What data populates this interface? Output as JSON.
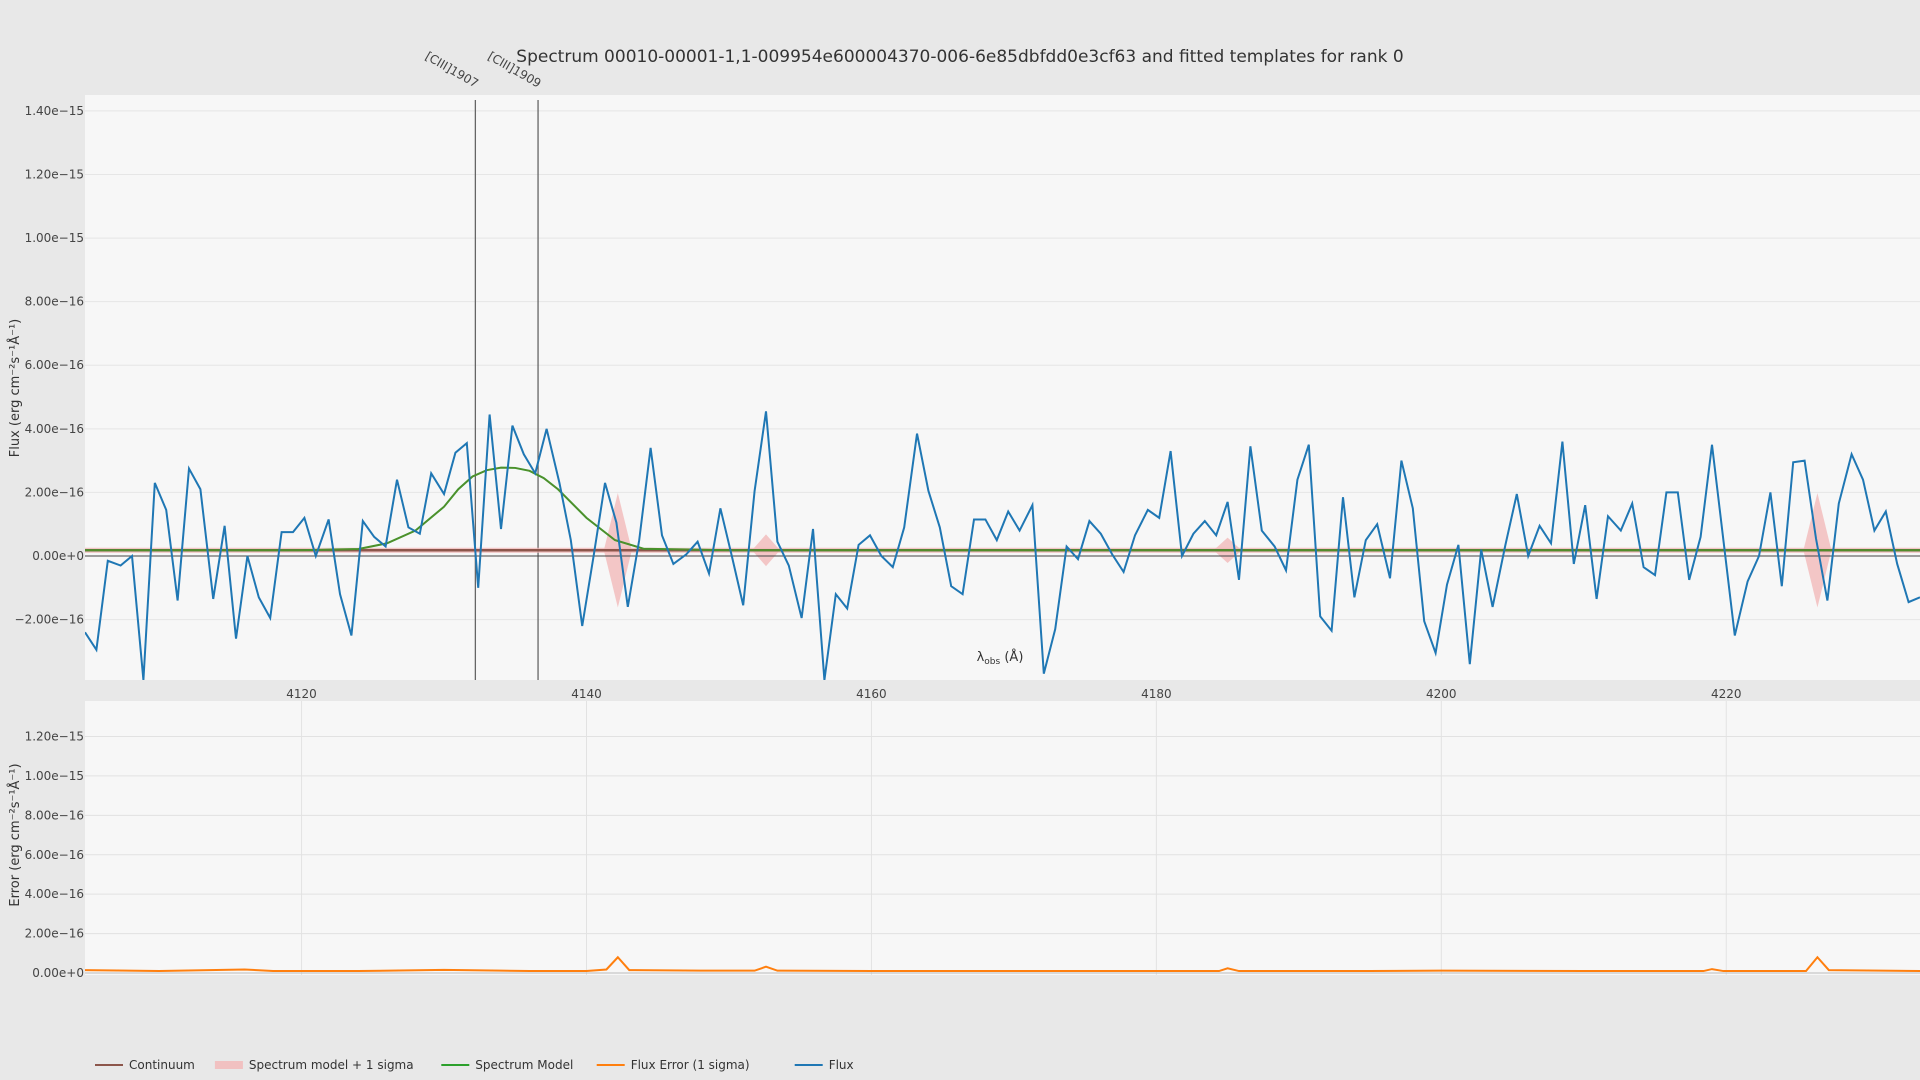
{
  "chart_data": [
    {
      "type": "line",
      "title": "Spectrum 00010-00001-1,1-009954e600004370-006-6e85dbfdd0e3cf63 and fitted templates for rank 0",
      "xlabel_main": "λ",
      "xlabel_sub": "obs",
      "xlabel_unit": " (Å)",
      "ylabel": "Flux (erg cm⁻²s⁻¹Å⁻¹)",
      "xlim": [
        4104.8,
        4233.6
      ],
      "ylim": [
        -3.9e-16,
        1.45e-15
      ],
      "x_ticks": [
        4120,
        4140,
        4160,
        4180,
        4200,
        4220
      ],
      "x_tick_labels": [
        "4120",
        "4140",
        "4160",
        "4180",
        "4200",
        "4220"
      ],
      "y_ticks": [
        -2e-16,
        0,
        2e-16,
        4e-16,
        6e-16,
        8e-16,
        1e-15,
        1.2e-15,
        1.4e-15
      ],
      "y_tick_labels": [
        "−2.00e−16",
        "0.00e+0",
        "2.00e−16",
        "4.00e−16",
        "6.00e−16",
        "8.00e−16",
        "1.00e−15",
        "1.20e−15",
        "1.40e−15"
      ],
      "line_markers": [
        {
          "label": "[CIII]1907",
          "x": 4132.2
        },
        {
          "label": "[CIII]1909",
          "x": 4136.6
        }
      ],
      "continuum": {
        "name": "Continuum",
        "value": 1.8e-17,
        "color": "#8c564b"
      },
      "zero_line": 0,
      "sigma_band": {
        "name": "Spectrum model + 1 sigma",
        "color": "#f2b6b6",
        "half_width": 8e-18,
        "spikes": [
          {
            "x": 4142.2,
            "width": 1.8e-16
          },
          {
            "x": 4152.6,
            "width": 5e-17
          },
          {
            "x": 4185.0,
            "width": 4e-17
          },
          {
            "x": 4226.4,
            "width": 1.8e-16
          }
        ]
      },
      "model": {
        "name": "Spectrum Model",
        "color": "#2ca02c",
        "x": [
          4104.8,
          4120,
          4124,
          4126,
          4128,
          4130,
          4131,
          4132,
          4133,
          4134,
          4135,
          4136,
          4137,
          4138,
          4140,
          4142,
          4144,
          4150,
          4233.6
        ],
        "y": [
          1.8e-17,
          1.8e-17,
          2.2e-17,
          4e-17,
          8e-17,
          1.55e-16,
          2.1e-16,
          2.5e-16,
          2.7e-16,
          2.78e-16,
          2.77e-16,
          2.68e-16,
          2.45e-16,
          2.1e-16,
          1.2e-16,
          5e-17,
          2.3e-17,
          1.8e-17,
          1.8e-17
        ]
      },
      "flux": {
        "name": "Flux",
        "color": "#1f77b4",
        "x": [
          4104.8,
          4105.6,
          4106.4,
          4107.3,
          4108.1,
          4108.9,
          4109.7,
          4110.5,
          4111.3,
          4112.1,
          4112.9,
          4113.8,
          4114.6,
          4115.4,
          4116.2,
          4117.0,
          4117.8,
          4118.6,
          4119.4,
          4120.2,
          4121.0,
          4121.9,
          4122.7,
          4123.5,
          4124.3,
          4125.1,
          4125.9,
          4126.7,
          4127.5,
          4128.3,
          4129.1,
          4130.0,
          4130.8,
          4131.6,
          4132.4,
          4133.2,
          4134.0,
          4134.8,
          4135.6,
          4136.4,
          4137.2,
          4138.1,
          4138.9,
          4139.7,
          4140.5,
          4141.3,
          4142.1,
          4142.9,
          4143.7,
          4144.5,
          4145.3,
          4146.1,
          4147.0,
          4147.8,
          4148.6,
          4149.4,
          4150.2,
          4151.0,
          4151.8,
          4152.6,
          4153.4,
          4154.2,
          4155.1,
          4155.9,
          4156.7,
          4157.5,
          4158.3,
          4159.1,
          4159.9,
          4160.7,
          4161.5,
          4162.3,
          4163.2,
          4164.0,
          4164.8,
          4165.6,
          4166.4,
          4167.2,
          4168.0,
          4168.8,
          4169.6,
          4170.4,
          4171.3,
          4172.1,
          4172.9,
          4173.7,
          4174.5,
          4175.3,
          4176.1,
          4176.9,
          4177.7,
          4178.5,
          4179.4,
          4180.2,
          4181.0,
          4181.8,
          4182.6,
          4183.4,
          4184.2,
          4185.0,
          4185.8,
          4186.6,
          4187.4,
          4188.3,
          4189.1,
          4189.9,
          4190.7,
          4191.5,
          4192.3,
          4193.1,
          4193.9,
          4194.7,
          4195.5,
          4196.4,
          4197.2,
          4198.0,
          4198.8,
          4199.6,
          4200.4,
          4201.2,
          4202.0,
          4202.8,
          4203.6,
          4204.5,
          4205.3,
          4206.1,
          4206.9,
          4207.7,
          4208.5,
          4209.3,
          4210.1,
          4210.9,
          4211.7,
          4212.6,
          4213.4,
          4214.2,
          4215.0,
          4215.8,
          4216.6,
          4217.4,
          4218.2,
          4219.0,
          4219.8,
          4220.6,
          4221.5,
          4222.3,
          4223.1,
          4223.9,
          4224.7,
          4225.5,
          4226.3,
          4227.1,
          4227.9,
          4228.8,
          4229.6,
          4230.4,
          4231.2,
          4232.0,
          4232.8,
          4233.6
        ],
        "y": [
          -2.4e-16,
          -2.95e-16,
          -1.5e-17,
          -3e-17,
          0,
          -3.9e-16,
          2.3e-16,
          1.45e-16,
          -1.4e-16,
          2.75e-16,
          2.1e-16,
          -1.35e-16,
          9.5e-17,
          -2.6e-16,
          0,
          -1.3e-16,
          -1.95e-16,
          7.5e-17,
          7.5e-17,
          1.2e-16,
          0,
          1.15e-16,
          -1.2e-16,
          -2.5e-16,
          1.1e-16,
          6e-17,
          3e-17,
          2.4e-16,
          9e-17,
          7e-17,
          2.6e-16,
          1.95e-16,
          3.25e-16,
          3.55e-16,
          -1e-16,
          4.45e-16,
          8.5e-17,
          4.1e-16,
          3.2e-16,
          2.6e-16,
          4e-16,
          2.3e-16,
          5e-17,
          -2.2e-16,
          0,
          2.3e-16,
          1.05e-16,
          -1.6e-16,
          5e-17,
          3.4e-16,
          6.5e-17,
          -2.5e-17,
          5e-18,
          4.5e-17,
          -5.5e-17,
          1.5e-16,
          0,
          -1.55e-16,
          2.05e-16,
          4.55e-16,
          4.5e-17,
          -3e-17,
          -1.95e-16,
          8.5e-17,
          -3.9e-16,
          -1.2e-16,
          -1.65e-16,
          3.5e-17,
          6.5e-17,
          0,
          -3.5e-17,
          9e-17,
          3.85e-16,
          2.05e-16,
          9e-17,
          -9.5e-17,
          -1.2e-16,
          1.15e-16,
          1.15e-16,
          5e-17,
          1.4e-16,
          8e-17,
          1.6e-16,
          -3.7e-16,
          -2.3e-16,
          3e-17,
          -1e-17,
          1.1e-16,
          7e-17,
          5e-18,
          -5e-17,
          6.5e-17,
          1.45e-16,
          1.2e-16,
          3.3e-16,
          0,
          7e-17,
          1.1e-16,
          6.5e-17,
          1.7e-16,
          -7.5e-17,
          3.45e-16,
          8e-17,
          3e-17,
          -4.5e-17,
          2.4e-16,
          3.5e-16,
          -1.9e-16,
          -2.35e-16,
          1.85e-16,
          -1.3e-16,
          5e-17,
          1e-16,
          -7e-17,
          3e-16,
          1.5e-16,
          -2.05e-16,
          -3.05e-16,
          -9e-17,
          3.5e-17,
          -3.4e-16,
          2e-17,
          -1.6e-16,
          3.5e-17,
          1.95e-16,
          0,
          9.5e-17,
          4e-17,
          3.6e-16,
          -2.5e-17,
          1.6e-16,
          -1.35e-16,
          1.25e-16,
          8e-17,
          1.65e-16,
          -3.5e-17,
          -6e-17,
          2e-16,
          2e-16,
          -7.5e-17,
          6e-17,
          3.5e-16,
          5e-17,
          -2.5e-16,
          -8e-17,
          0,
          2e-16,
          -9.5e-17,
          2.95e-16,
          3e-16,
          5.5e-17,
          -1.4e-16,
          1.65e-16,
          3.2e-16,
          2.4e-16,
          8e-17,
          1.4e-16,
          -2.5e-17,
          -1.45e-16,
          -1.3e-16
        ]
      }
    },
    {
      "type": "line",
      "ylabel": "Error (erg cm⁻²s⁻¹Å⁻¹)",
      "xlim": [
        4104.8,
        4233.6
      ],
      "ylim": [
        -1e-17,
        1.38e-15
      ],
      "x_ticks": [
        4120,
        4140,
        4160,
        4180,
        4200,
        4220
      ],
      "y_ticks": [
        0,
        2e-16,
        4e-16,
        6e-16,
        8e-16,
        1e-15,
        1.2e-15
      ],
      "y_tick_labels": [
        "0.00e+0",
        "2.00e−16",
        "4.00e−16",
        "6.00e−16",
        "8.00e−16",
        "1.00e−15",
        "1.20e−15"
      ],
      "grid": true,
      "flux_error": {
        "name": "Flux Error (1 sigma)",
        "color": "#ff7f0e",
        "x": [
          4104.8,
          4110,
          4116,
          4118,
          4124,
          4130,
          4134,
          4136,
          4140,
          4141.4,
          4142.2,
          4143,
          4148,
          4151.8,
          4152.6,
          4153.4,
          4160,
          4170,
          4180,
          4184.4,
          4185.0,
          4185.8,
          4195,
          4200,
          4210,
          4218.4,
          4219.0,
          4219.8,
          4225.6,
          4226.4,
          4227.2,
          4233.6
        ],
        "y": [
          1.5e-17,
          1e-17,
          1.8e-17,
          1e-17,
          1e-17,
          1.6e-17,
          1.2e-17,
          1e-17,
          1e-17,
          1.8e-17,
          8e-17,
          1.5e-17,
          1.2e-17,
          1.2e-17,
          3.2e-17,
          1.2e-17,
          1e-17,
          1e-17,
          1e-17,
          1e-17,
          2.4e-17,
          1e-17,
          1e-17,
          1.2e-17,
          1e-17,
          1e-17,
          2e-17,
          1e-17,
          1e-17,
          8e-17,
          1.5e-17,
          1e-17
        ]
      }
    }
  ],
  "legend": {
    "placement": "bottom-left",
    "items": [
      {
        "label": "Continuum",
        "color": "#8c564b",
        "style": "line"
      },
      {
        "label": "Spectrum model + 1 sigma",
        "color": "#f2b6b6",
        "style": "band"
      },
      {
        "label": "Spectrum Model",
        "color": "#2ca02c",
        "style": "line"
      },
      {
        "label": "Flux Error (1 sigma)",
        "color": "#ff7f0e",
        "style": "line"
      },
      {
        "label": "Flux",
        "color": "#1f77b4",
        "style": "line"
      }
    ]
  }
}
